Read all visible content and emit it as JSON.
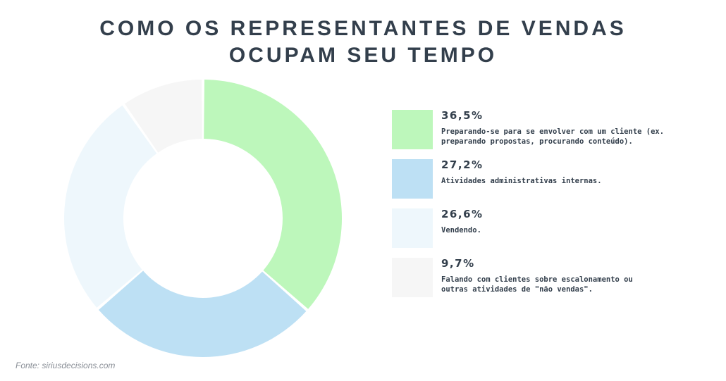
{
  "header": {
    "title_line1": "COMO OS REPRESENTANTES DE VENDAS",
    "title_line2": "OCUPAM SEU TEMPO"
  },
  "chart_data": {
    "type": "pie",
    "title": "COMO OS REPRESENTANTES DE VENDAS OCUPAM SEU TEMPO",
    "categories": [
      "Preparando-se para se envolver com um cliente (ex. preparando propostas, procurando conteúdo).",
      "Atividades administrativas internas.",
      "Vendendo.",
      "Falando com clientes sobre escalonamento ou outras atividades de \"não vendas\"."
    ],
    "values": [
      36.5,
      27.2,
      26.6,
      9.7
    ],
    "value_labels": [
      "36,5%",
      "27,2%",
      "26,6%",
      "9,7%"
    ],
    "colors": [
      "#bdf7bb",
      "#bde0f4",
      "#eef7fc",
      "#f6f6f6"
    ],
    "legend_placement": "right",
    "donut": true
  },
  "legend": [
    {
      "value": "36,5%",
      "label_line1": "Preparando-se para se envolver com um cliente (ex.",
      "label_line2": "preparando propostas, procurando conteúdo)."
    },
    {
      "value": "27,2%",
      "label_line1": "Atividades administrativas internas.",
      "label_line2": ""
    },
    {
      "value": "26,6%",
      "label_line1": "Vendendo.",
      "label_line2": ""
    },
    {
      "value": "9,7%",
      "label_line1": "Falando com clientes sobre escalonamento ou",
      "label_line2": "outras atividades de \"não vendas\"."
    }
  ],
  "footer": {
    "source": "Fonte: siriusdecisions.com"
  }
}
